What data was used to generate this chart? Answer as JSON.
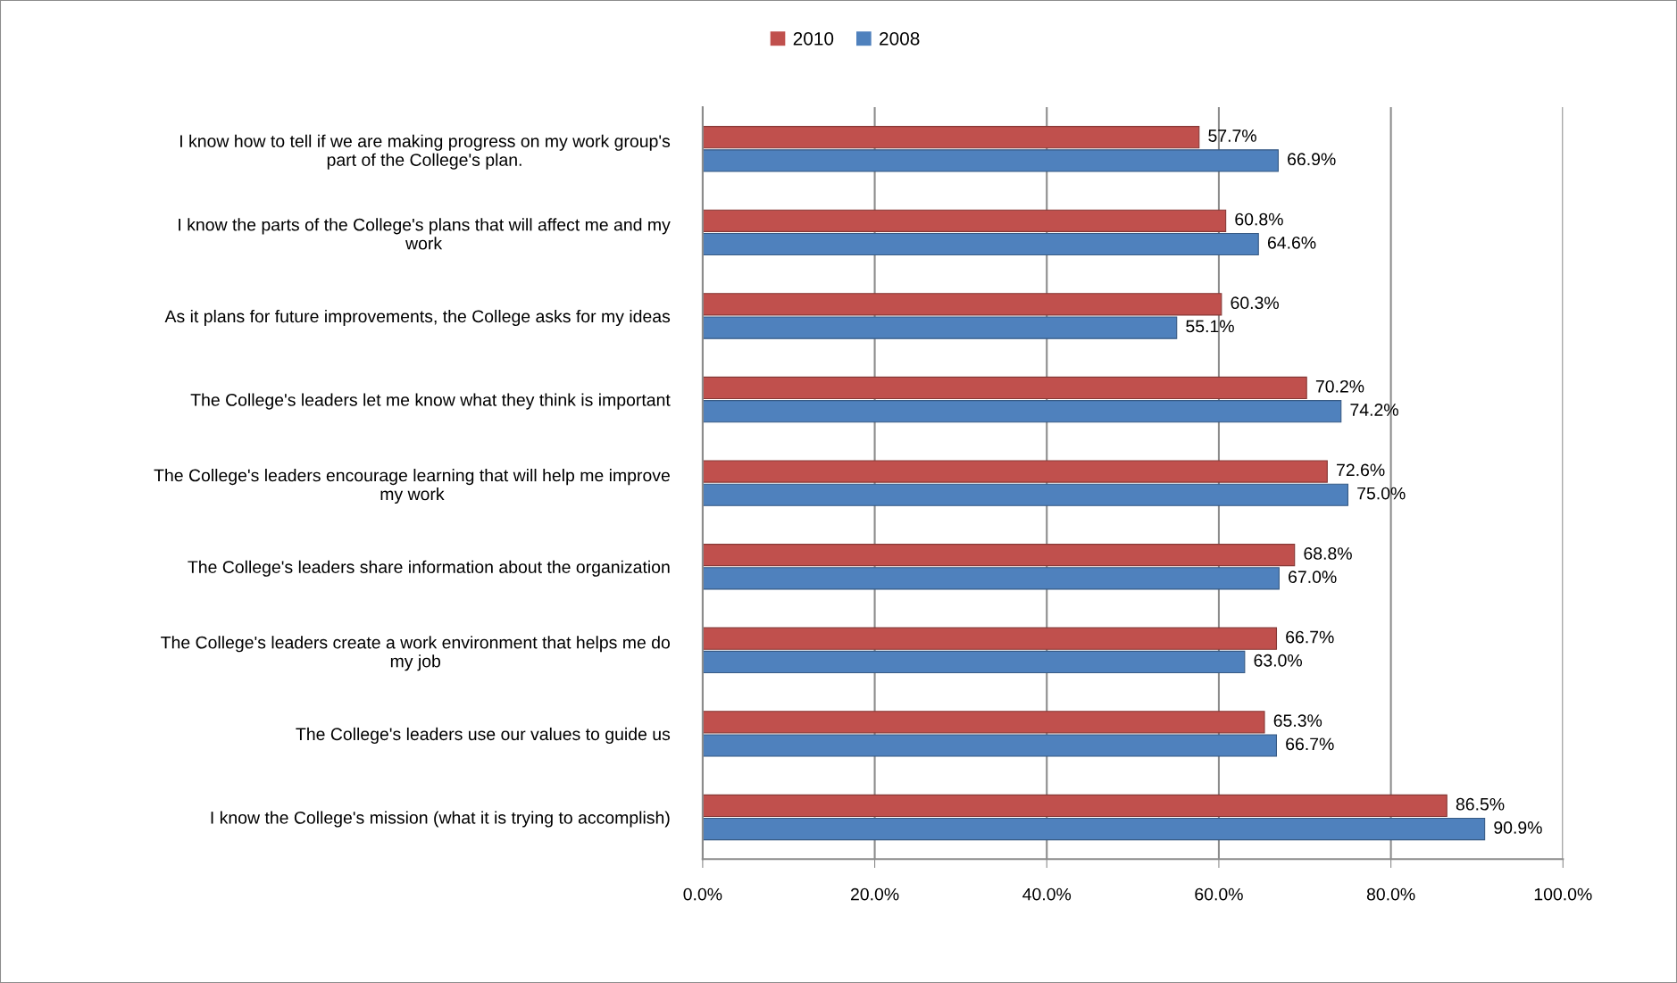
{
  "chart_data": {
    "type": "bar",
    "orientation": "horizontal",
    "categories": [
      "I know how to tell if we are making progress on my work group's part of the College's plan.",
      "I know the parts of the College's plans that will affect me and my work",
      "As it plans for future improvements, the College asks for my ideas",
      "The College's leaders let me know what they think is important",
      "The College's leaders encourage learning that will help me improve my work",
      "The College's leaders share information about the organization",
      "The College's leaders create a work environment that helps me do my job",
      "The College's leaders use our values to guide us",
      "I know the College's mission (what it is trying to accomplish)"
    ],
    "series": [
      {
        "name": "2010",
        "color": "#c0504d",
        "values": [
          57.7,
          60.8,
          60.3,
          70.2,
          72.6,
          68.8,
          66.7,
          65.3,
          86.5
        ],
        "value_labels": [
          "57.7%",
          "60.8%",
          "60.3%",
          "70.2%",
          "72.6%",
          "68.8%",
          "66.7%",
          "65.3%",
          "86.5%"
        ]
      },
      {
        "name": "2008",
        "color": "#4f81bd",
        "values": [
          66.9,
          64.6,
          55.1,
          74.2,
          75.0,
          67.0,
          63.0,
          66.7,
          90.9
        ],
        "value_labels": [
          "66.9%",
          "64.6%",
          "55.1%",
          "74.2%",
          "75.0%",
          "67.0%",
          "63.0%",
          "66.7%",
          "90.9%"
        ]
      }
    ],
    "xlim": [
      0,
      100
    ],
    "xticks": [
      {
        "value": 0,
        "label": "0.0%"
      },
      {
        "value": 20,
        "label": "20.0%"
      },
      {
        "value": 40,
        "label": "40.0%"
      },
      {
        "value": 60,
        "label": "60.0%"
      },
      {
        "value": 80,
        "label": "80.0%"
      },
      {
        "value": 100,
        "label": "100.0%"
      }
    ],
    "grid": "x",
    "legend": "top"
  }
}
